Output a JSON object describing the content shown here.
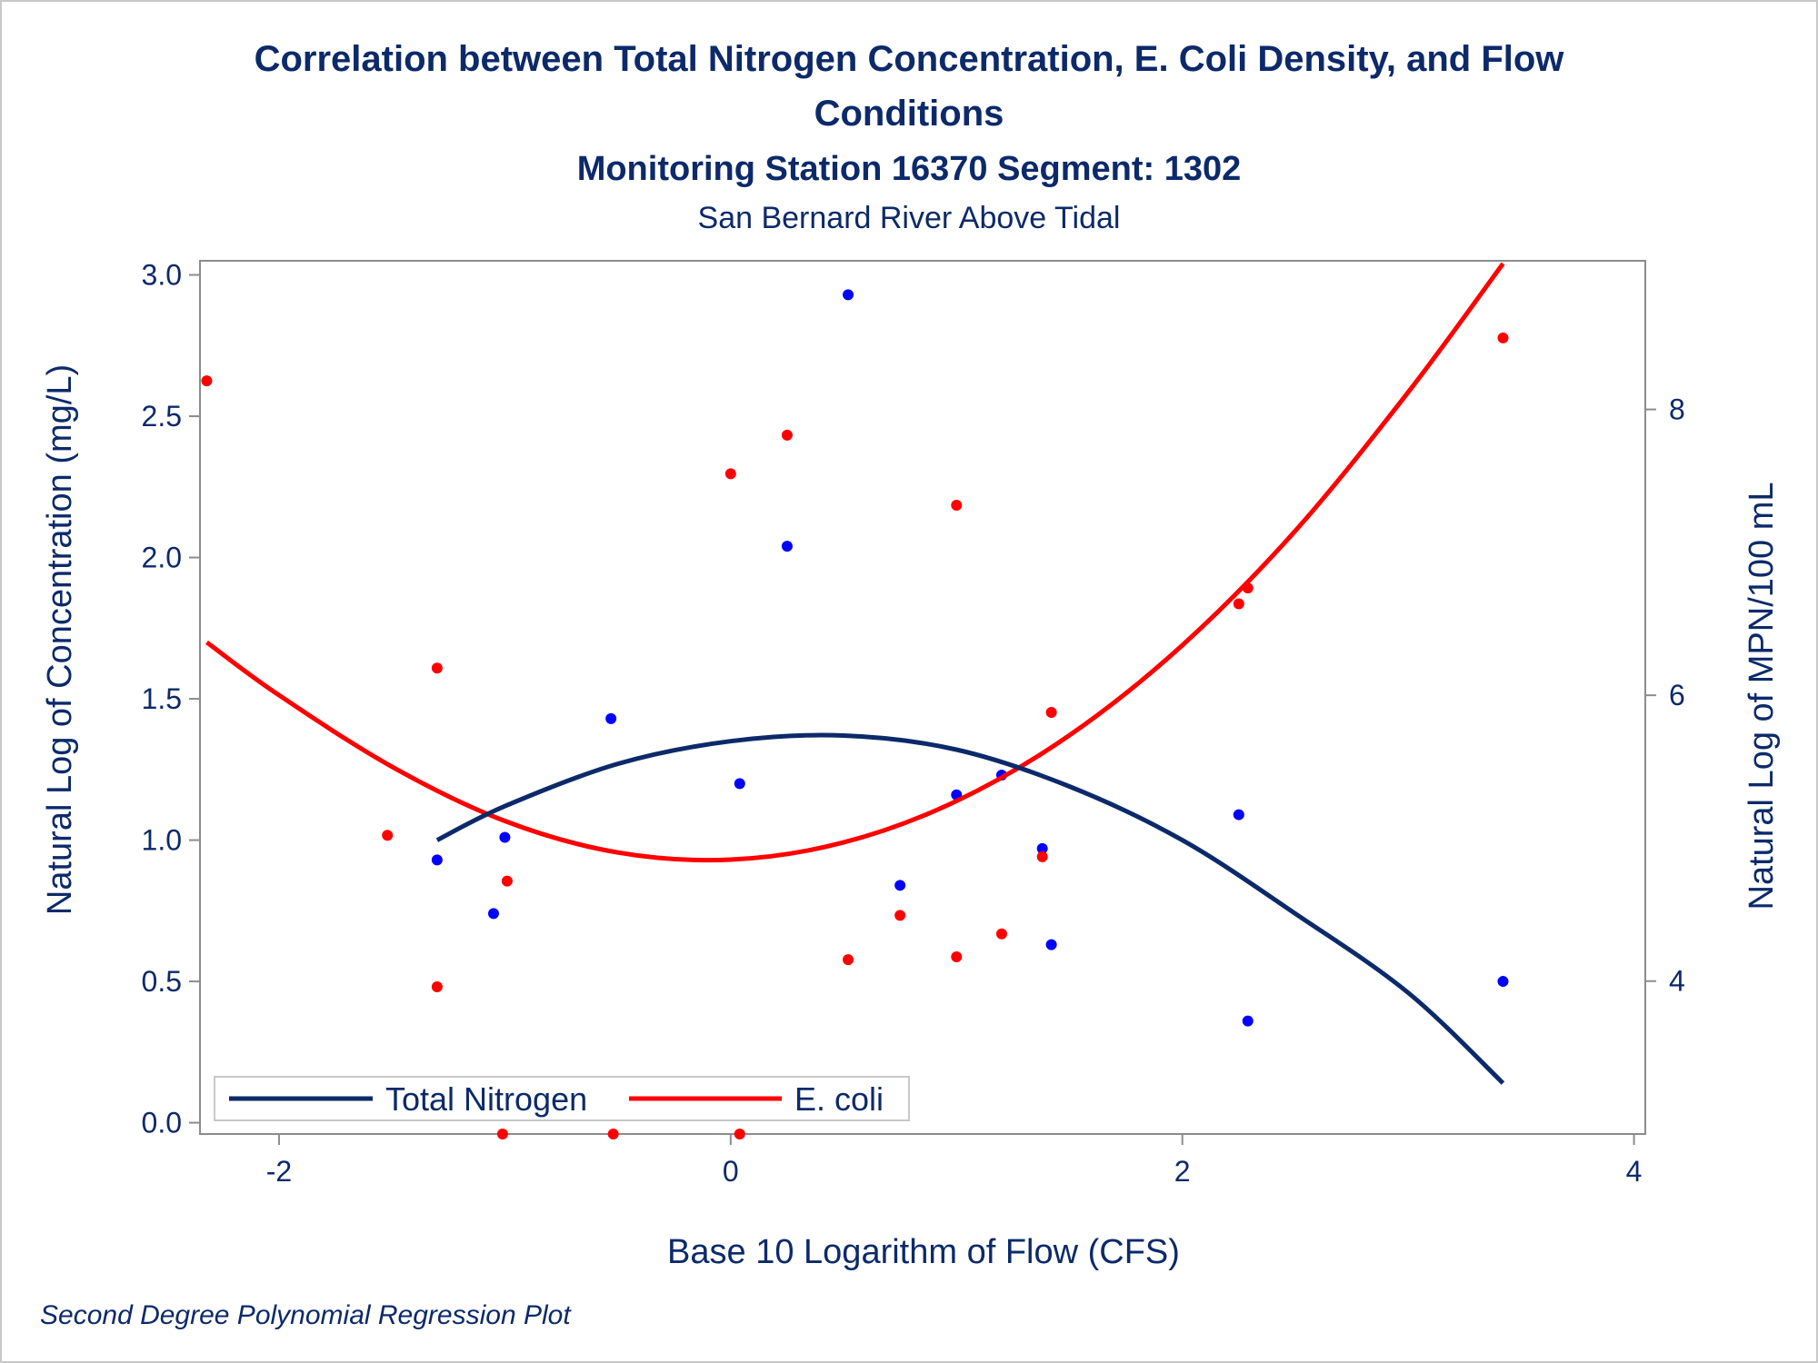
{
  "title_line1": "Correlation between Total Nitrogen Concentration, E. Coli Density, and Flow",
  "title_line2": "Conditions",
  "subtitle": "Monitoring Station 16370 Segment: 1302",
  "subtitle2": "San Bernard River Above Tidal",
  "footnote": "Second Degree Polynomial Regression Plot",
  "colors": {
    "text": "#0c2a6a",
    "nitrogen_line": "#0c2a6a",
    "nitrogen_points": "#0000ff",
    "ecoli": "#ff0000",
    "axis": "#8c8c8c"
  },
  "chart_data": {
    "type": "scatter",
    "xlabel": "Base 10 Logarithm of Flow (CFS)",
    "ylabel": "Natural Log of Concentration (mg/L)",
    "y2label": "Natural Log of MPN/100 mL",
    "xlim": [
      -2.35,
      4.05
    ],
    "ylim": [
      -0.04,
      3.05
    ],
    "y2lim": [
      2.93,
      9.04
    ],
    "xticks": [
      -2,
      0,
      2,
      4
    ],
    "xtick_labels": [
      "-2",
      "0",
      "2",
      "4"
    ],
    "yticks": [
      0.0,
      0.5,
      1.0,
      1.5,
      2.0,
      2.5,
      3.0
    ],
    "ytick_labels": [
      "0.0",
      "0.5",
      "1.0",
      "1.5",
      "2.0",
      "2.5",
      "3.0"
    ],
    "y2ticks": [
      4,
      6,
      8
    ],
    "y2tick_labels": [
      "4",
      "6",
      "8"
    ],
    "legend_position": "bottom-left",
    "series": [
      {
        "name": "Total Nitrogen",
        "axis": "left",
        "points": [
          [
            -1.3,
            0.93
          ],
          [
            -1.05,
            0.74
          ],
          [
            -1.0,
            1.01
          ],
          [
            -0.53,
            1.43
          ],
          [
            0.04,
            1.2
          ],
          [
            0.25,
            2.04
          ],
          [
            0.52,
            2.93
          ],
          [
            0.75,
            0.84
          ],
          [
            1.0,
            1.16
          ],
          [
            1.2,
            1.23
          ],
          [
            1.38,
            0.97
          ],
          [
            1.42,
            0.63
          ],
          [
            2.25,
            1.09
          ],
          [
            2.29,
            0.36
          ],
          [
            3.42,
            0.5
          ]
        ],
        "fit": [
          [
            -1.3,
            1.0
          ],
          [
            -1.0,
            1.12
          ],
          [
            -0.5,
            1.27
          ],
          [
            0.0,
            1.35
          ],
          [
            0.5,
            1.37
          ],
          [
            1.0,
            1.32
          ],
          [
            1.5,
            1.19
          ],
          [
            2.0,
            1.0
          ],
          [
            2.5,
            0.74
          ],
          [
            3.0,
            0.46
          ],
          [
            3.42,
            0.14
          ]
        ]
      },
      {
        "name": "E. coli",
        "axis": "right",
        "points": [
          [
            -2.32,
            8.2
          ],
          [
            -1.52,
            5.02
          ],
          [
            -1.3,
            6.19
          ],
          [
            -1.3,
            3.96
          ],
          [
            -1.01,
            2.93
          ],
          [
            -0.99,
            4.7
          ],
          [
            -0.52,
            2.93
          ],
          [
            0.0,
            7.55
          ],
          [
            0.04,
            2.93
          ],
          [
            0.25,
            7.82
          ],
          [
            0.52,
            4.15
          ],
          [
            0.75,
            4.46
          ],
          [
            1.0,
            7.33
          ],
          [
            1.0,
            4.17
          ],
          [
            1.2,
            4.33
          ],
          [
            1.38,
            4.87
          ],
          [
            1.42,
            5.88
          ],
          [
            2.25,
            6.64
          ],
          [
            2.29,
            6.75
          ],
          [
            3.42,
            8.5
          ]
        ],
        "fit": [
          [
            -2.32,
            6.37
          ],
          [
            -2.0,
            6.0
          ],
          [
            -1.5,
            5.5
          ],
          [
            -1.0,
            5.12
          ],
          [
            -0.5,
            4.9
          ],
          [
            0.0,
            4.85
          ],
          [
            0.5,
            4.97
          ],
          [
            1.0,
            5.26
          ],
          [
            1.5,
            5.72
          ],
          [
            2.0,
            6.35
          ],
          [
            2.5,
            7.15
          ],
          [
            3.0,
            8.12
          ],
          [
            3.42,
            9.02
          ]
        ]
      }
    ]
  }
}
